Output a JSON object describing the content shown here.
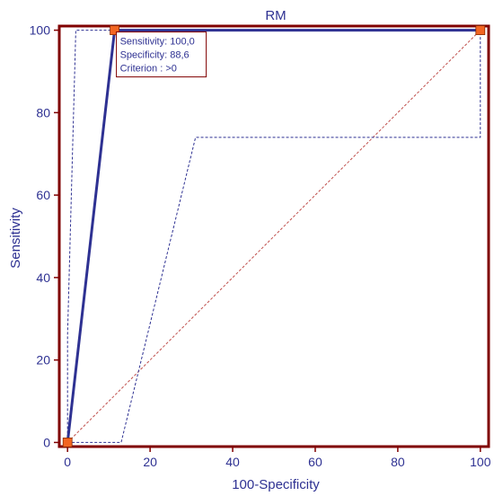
{
  "chart_data": {
    "type": "line",
    "title": "RM",
    "xlabel": "100-Specificity",
    "ylabel": "Sensitivity",
    "xlim": [
      -2,
      102
    ],
    "ylim": [
      -1,
      101
    ],
    "xticks": [
      0,
      20,
      40,
      60,
      80,
      100
    ],
    "yticks": [
      0,
      20,
      40,
      60,
      80,
      100
    ],
    "grid": false,
    "series": [
      {
        "role": "roc-curve",
        "style": "solid",
        "color": "#2e3192",
        "x": [
          0,
          11.4,
          100
        ],
        "y": [
          0,
          100,
          100
        ],
        "marker_color": "#f26522"
      },
      {
        "role": "upper-confidence-bound",
        "style": "dashed",
        "color": "#2e3192",
        "x": [
          0,
          0,
          2,
          100
        ],
        "y": [
          0,
          26,
          100,
          100
        ]
      },
      {
        "role": "lower-confidence-bound",
        "style": "dashed",
        "color": "#2e3192",
        "x": [
          0,
          13,
          31,
          100,
          100
        ],
        "y": [
          0,
          0,
          74,
          74,
          100
        ]
      },
      {
        "role": "reference-diagonal",
        "style": "dashed",
        "color": "#c0504d",
        "x": [
          0,
          100
        ],
        "y": [
          0,
          100
        ]
      }
    ],
    "annotation": {
      "anchor": [
        11.4,
        100
      ],
      "lines": [
        "Sensitivity: 100,0",
        "Specificity: 88,6",
        "Criterion : >0"
      ]
    }
  },
  "colors": {
    "frame": "#800000",
    "axis_text": "#2e3192",
    "annotation_border": "#800000"
  }
}
